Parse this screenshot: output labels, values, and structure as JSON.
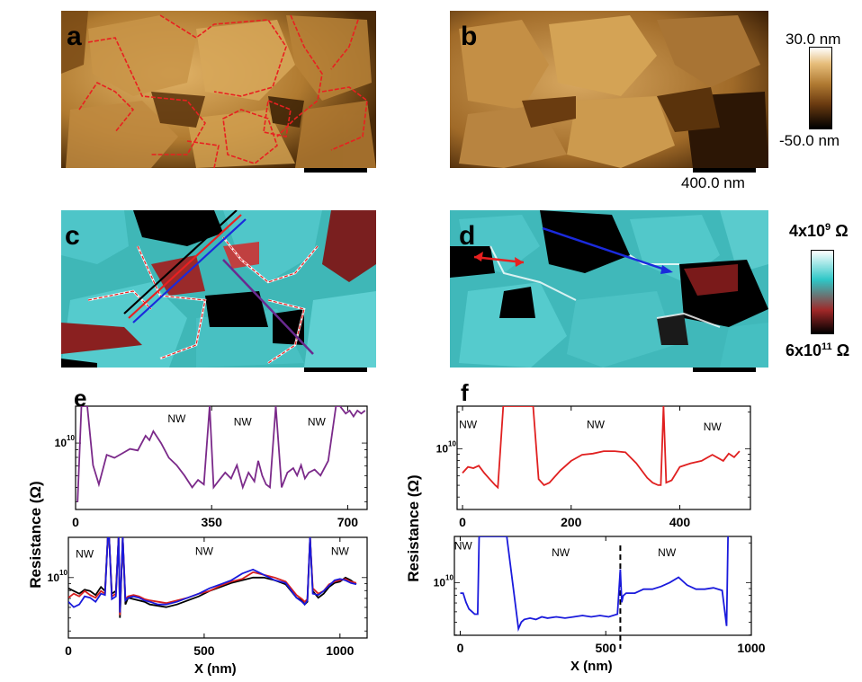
{
  "panel_labels": {
    "a": "a",
    "b": "b",
    "c": "c",
    "d": "d",
    "e": "e",
    "f": "f"
  },
  "colorbar_height": {
    "top": "30.0 nm",
    "bottom": "-50.0 nm",
    "colors": [
      "#ffffff",
      "#d8a050",
      "#6a3a10",
      "#000000"
    ]
  },
  "colorbar_resistance": {
    "top_base": "4x10",
    "top_exp": "9",
    "top_unit": "Ω",
    "bottom_base": "6x10",
    "bottom_exp": "11",
    "bottom_unit": "Ω",
    "colors": [
      "#ffffff",
      "#2fc7c7",
      "#a02828",
      "#000000"
    ]
  },
  "scalebar_label": "400.0 nm",
  "y_axis_label": "Resistance (Ω)",
  "x_axis_label": "X (nm)",
  "chart_data": [
    {
      "id": "e-top",
      "type": "line",
      "ylabel": "Resistance (Ω)",
      "xlabel": "",
      "xlim": [
        0,
        750
      ],
      "ylog": true,
      "ylim_log": [
        9.55,
        10.25
      ],
      "ytick_labels": [
        {
          "value": 10,
          "label": "10",
          "exp": "10"
        }
      ],
      "xticks": [
        0,
        350,
        700
      ],
      "annotations": [
        {
          "text": "NW",
          "x": 260,
          "logy": 10.14
        },
        {
          "text": "NW",
          "x": 430,
          "logy": 10.12
        },
        {
          "text": "NW",
          "x": 620,
          "logy": 10.12
        }
      ],
      "series": [
        {
          "color": "#7b2a8a",
          "x": [
            5,
            15,
            30,
            45,
            60,
            80,
            100,
            120,
            140,
            160,
            180,
            190,
            200,
            220,
            240,
            260,
            280,
            300,
            315,
            330,
            345,
            355,
            370,
            385,
            400,
            415,
            430,
            445,
            460,
            470,
            480,
            490,
            500,
            515,
            530,
            545,
            560,
            570,
            580,
            590,
            600,
            615,
            630,
            650,
            670,
            680,
            695,
            705,
            715,
            725,
            735,
            745
          ],
          "logy": [
            9.6,
            10.3,
            10.3,
            9.85,
            9.72,
            9.92,
            9.9,
            9.93,
            9.96,
            9.95,
            10.05,
            10.02,
            10.08,
            10.0,
            9.9,
            9.85,
            9.78,
            9.7,
            9.75,
            9.72,
            10.3,
            9.7,
            9.75,
            9.8,
            9.76,
            9.85,
            9.7,
            9.8,
            9.74,
            9.88,
            9.78,
            9.72,
            9.7,
            10.3,
            9.7,
            9.8,
            9.83,
            9.78,
            9.85,
            9.76,
            9.8,
            9.82,
            9.78,
            9.88,
            10.3,
            10.25,
            10.2,
            10.22,
            10.18,
            10.22,
            10.2,
            10.22
          ]
        }
      ]
    },
    {
      "id": "e-bottom",
      "type": "line",
      "ylabel": "Resistance (Ω)",
      "xlabel": "X (nm)",
      "xlim": [
        0,
        1100
      ],
      "ylog": true,
      "ylim_log": [
        9.55,
        10.3
      ],
      "ytick_labels": [
        {
          "value": 10,
          "label": "10",
          "exp": "10"
        }
      ],
      "xticks": [
        0,
        500,
        1000
      ],
      "annotations": [
        {
          "text": "NW",
          "x": 60,
          "logy": 10.15
        },
        {
          "text": "NW",
          "x": 500,
          "logy": 10.17
        },
        {
          "text": "NW",
          "x": 1000,
          "logy": 10.17
        }
      ],
      "series": [
        {
          "name": "",
          "color": "#000000",
          "x": [
            0,
            20,
            40,
            60,
            80,
            100,
            120,
            135,
            145,
            150,
            160,
            175,
            185,
            190,
            200,
            210,
            220,
            240,
            260,
            280,
            300,
            330,
            360,
            400,
            440,
            480,
            520,
            560,
            600,
            640,
            680,
            720,
            760,
            800,
            840,
            860,
            870,
            880,
            890,
            900,
            920,
            940,
            960,
            980,
            1000,
            1020,
            1040,
            1060
          ],
          "y": [
            9.92,
            9.9,
            9.88,
            9.91,
            9.9,
            9.87,
            9.93,
            9.9,
            10.3,
            10.3,
            9.88,
            9.9,
            10.3,
            9.7,
            10.3,
            9.8,
            9.85,
            9.84,
            9.83,
            9.82,
            9.8,
            9.79,
            9.78,
            9.8,
            9.83,
            9.86,
            9.9,
            9.93,
            9.96,
            9.98,
            10.0,
            10.0,
            9.98,
            9.95,
            9.85,
            9.83,
            9.8,
            9.82,
            10.3,
            9.9,
            9.85,
            9.88,
            9.93,
            9.96,
            9.97,
            10.0,
            9.98,
            9.95
          ]
        },
        {
          "name": "",
          "color": "#d62020",
          "x": [
            0,
            20,
            40,
            60,
            80,
            100,
            120,
            135,
            145,
            150,
            160,
            175,
            185,
            190,
            200,
            210,
            220,
            240,
            260,
            280,
            300,
            330,
            360,
            400,
            440,
            480,
            520,
            560,
            600,
            640,
            680,
            720,
            760,
            800,
            840,
            860,
            870,
            880,
            890,
            900,
            920,
            940,
            960,
            980,
            1000,
            1020,
            1040,
            1060
          ],
          "y": [
            9.85,
            9.88,
            9.86,
            9.9,
            9.87,
            9.85,
            9.9,
            9.88,
            10.3,
            10.3,
            9.86,
            9.88,
            10.3,
            9.72,
            10.3,
            9.84,
            9.86,
            9.87,
            9.86,
            9.84,
            9.83,
            9.82,
            9.81,
            9.83,
            9.85,
            9.88,
            9.9,
            9.94,
            9.97,
            9.99,
            10.04,
            10.02,
            10.0,
            9.97,
            9.87,
            9.84,
            9.82,
            9.84,
            10.3,
            9.92,
            9.88,
            9.9,
            9.95,
            9.97,
            9.98,
            9.99,
            9.97,
            9.96
          ]
        },
        {
          "name": "",
          "color": "#1a1adc",
          "x": [
            0,
            20,
            40,
            60,
            80,
            100,
            120,
            135,
            145,
            150,
            160,
            175,
            185,
            190,
            200,
            210,
            220,
            240,
            260,
            280,
            300,
            330,
            360,
            400,
            440,
            480,
            520,
            560,
            600,
            640,
            680,
            720,
            760,
            800,
            840,
            860,
            870,
            880,
            890,
            900,
            920,
            940,
            960,
            980,
            1000,
            1020,
            1040,
            1060
          ],
          "y": [
            9.82,
            9.78,
            9.8,
            9.86,
            9.85,
            9.82,
            9.88,
            9.87,
            10.3,
            10.3,
            9.84,
            9.86,
            10.3,
            9.74,
            10.3,
            9.83,
            9.85,
            9.86,
            9.85,
            9.83,
            9.82,
            9.8,
            9.8,
            9.82,
            9.85,
            9.88,
            9.92,
            9.95,
            9.98,
            10.03,
            10.06,
            10.02,
            9.98,
            9.96,
            9.85,
            9.82,
            9.8,
            9.83,
            10.3,
            9.88,
            9.87,
            9.9,
            9.94,
            9.98,
            9.99,
            9.98,
            9.96,
            9.95
          ]
        }
      ]
    },
    {
      "id": "f-top",
      "type": "line",
      "ylabel": "Resistance (Ω)",
      "xlabel": "",
      "xlim": [
        -10,
        530
      ],
      "ylog": true,
      "ylim_log": [
        9.5,
        10.35
      ],
      "ytick_labels": [
        {
          "value": 10,
          "label": "10",
          "exp": "10"
        }
      ],
      "xticks": [
        0,
        200,
        400
      ],
      "annotations": [
        {
          "text": "NW",
          "x": 10,
          "logy": 10.17
        },
        {
          "text": "NW",
          "x": 245,
          "logy": 10.17
        },
        {
          "text": "NW",
          "x": 460,
          "logy": 10.15
        }
      ],
      "series": [
        {
          "color": "#e02020",
          "x": [
            0,
            10,
            20,
            30,
            40,
            50,
            60,
            65,
            75,
            80,
            90,
            100,
            110,
            120,
            130,
            140,
            150,
            160,
            180,
            200,
            220,
            240,
            260,
            280,
            300,
            320,
            340,
            350,
            360,
            365,
            370,
            375,
            385,
            400,
            420,
            440,
            460,
            480,
            490,
            500,
            510
          ],
          "y": [
            9.8,
            9.85,
            9.84,
            9.86,
            9.8,
            9.75,
            9.7,
            9.68,
            10.4,
            10.4,
            10.4,
            10.4,
            10.4,
            10.4,
            10.4,
            9.75,
            9.7,
            9.72,
            9.82,
            9.9,
            9.95,
            9.96,
            9.98,
            9.98,
            9.97,
            9.88,
            9.76,
            9.72,
            9.7,
            9.7,
            10.4,
            9.72,
            9.74,
            9.85,
            9.88,
            9.9,
            9.95,
            9.9,
            9.96,
            9.93,
            9.98
          ]
        }
      ]
    },
    {
      "id": "f-bottom",
      "type": "line",
      "ylabel": "Resistance (Ω)",
      "xlabel": "X (nm)",
      "xlim": [
        -20,
        1000
      ],
      "ylog": true,
      "ylim_log": [
        9.6,
        10.35
      ],
      "ytick_labels": [
        {
          "value": 10,
          "label": "10",
          "exp": "10"
        }
      ],
      "xticks": [
        0,
        500,
        1000
      ],
      "annotations": [
        {
          "text": "NW",
          "x": 10,
          "logy": 10.25
        },
        {
          "text": "NW",
          "x": 345,
          "logy": 10.2
        },
        {
          "text": "NW",
          "x": 710,
          "logy": 10.2
        }
      ],
      "series": [
        {
          "color": "#1a1adc",
          "x": [
            0,
            10,
            20,
            30,
            40,
            50,
            60,
            65,
            70,
            80,
            120,
            160,
            200,
            210,
            220,
            240,
            260,
            280,
            300,
            330,
            360,
            390,
            420,
            450,
            480,
            510,
            540,
            550,
            555,
            560,
            570,
            600,
            630,
            660,
            690,
            720,
            750,
            780,
            810,
            840,
            870,
            900,
            915,
            920
          ],
          "y": [
            9.92,
            9.92,
            9.85,
            9.8,
            9.78,
            9.76,
            9.76,
            10.35,
            10.35,
            10.35,
            10.35,
            10.35,
            9.65,
            9.7,
            9.72,
            9.73,
            9.72,
            9.74,
            9.73,
            9.74,
            9.73,
            9.74,
            9.75,
            9.74,
            9.75,
            9.74,
            9.76,
            10.1,
            9.85,
            9.9,
            9.92,
            9.92,
            9.95,
            9.95,
            9.97,
            10.0,
            10.04,
            9.98,
            9.95,
            9.95,
            9.96,
            9.94,
            9.67,
            10.35
          ]
        }
      ],
      "dashed_x": 550
    }
  ]
}
